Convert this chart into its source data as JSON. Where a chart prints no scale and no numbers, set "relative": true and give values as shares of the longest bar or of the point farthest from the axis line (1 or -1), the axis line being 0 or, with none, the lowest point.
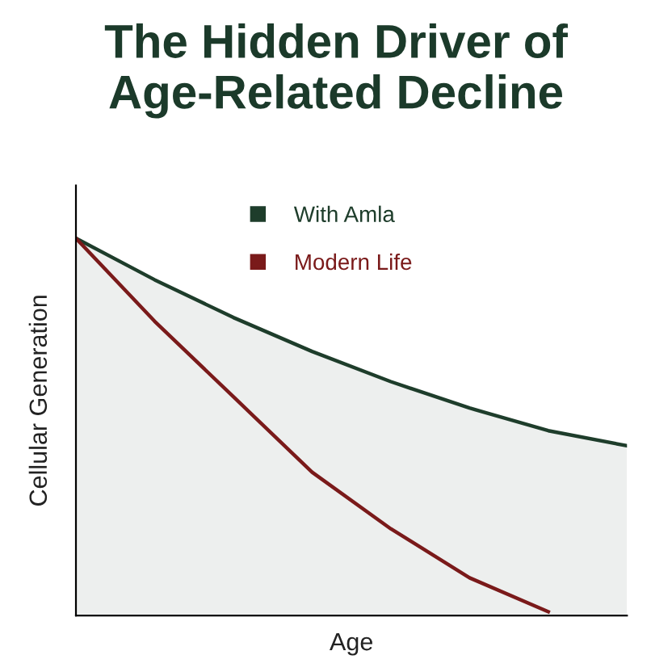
{
  "chart_data": {
    "type": "line",
    "title": "The Hidden Driver of Age-Related Decline",
    "xlabel": "Age",
    "ylabel": "Cellular Generation",
    "relative": true,
    "legend": "top",
    "grid": false,
    "marker": "none",
    "categories": [
      null,
      null,
      null,
      null,
      null,
      null,
      null,
      null
    ],
    "series": [
      {
        "name": "With Amla",
        "type": "area",
        "color": "#1e3d2b",
        "values": [
          1,
          0.89,
          0.79,
          0.7,
          0.62,
          0.55,
          0.49,
          0.45
        ]
      },
      {
        "name": "Modern Life",
        "color": "#7a1a1a",
        "values": [
          1,
          0.78,
          0.58,
          0.38,
          0.23,
          0.1,
          0.01,
          null
        ]
      }
    ]
  }
}
